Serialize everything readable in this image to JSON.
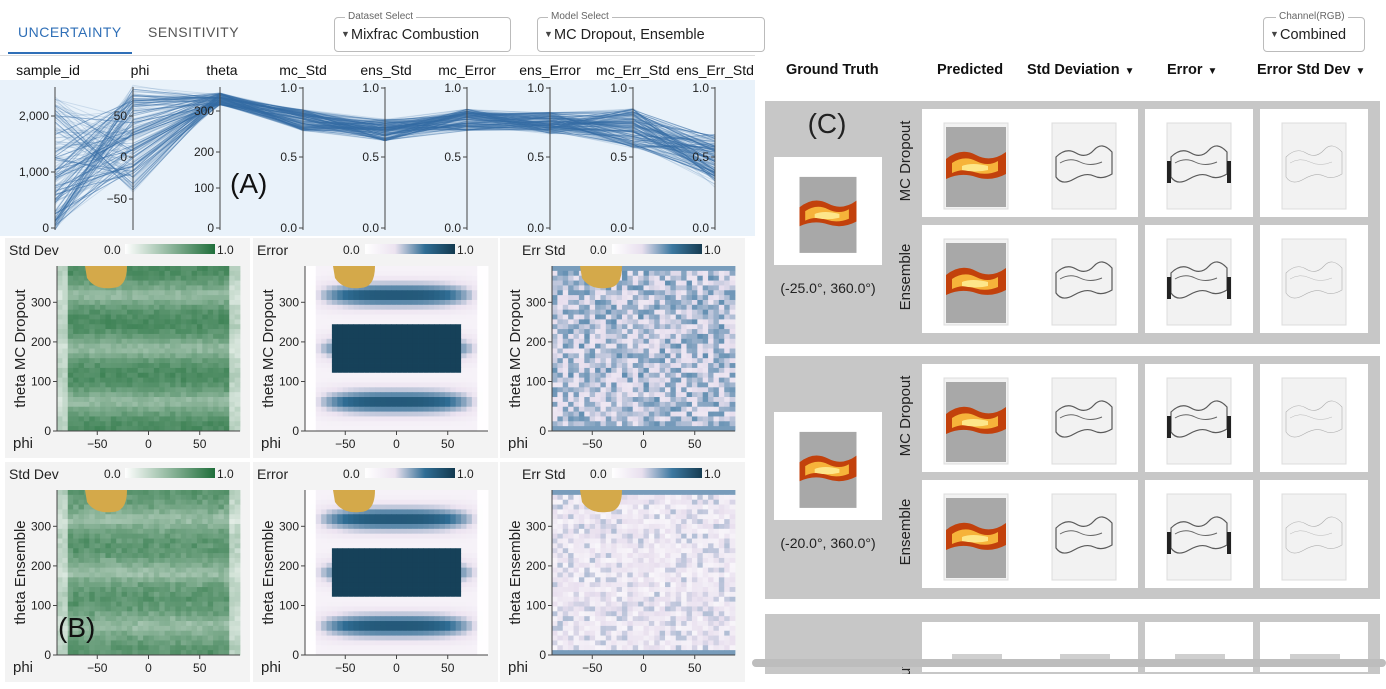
{
  "tabs": {
    "uncertainty": "UNCERTAINTY",
    "sensitivity": "SENSITIVITY"
  },
  "dataset_select": {
    "legend": "Dataset Select",
    "value": "Mixfrac Combustion"
  },
  "model_select": {
    "legend": "Model Select",
    "value": "MC Dropout, Ensemble"
  },
  "channel_select": {
    "legend": "Channel(RGB)",
    "value": "Combined"
  },
  "parallel_coords": {
    "axes": [
      "sample_id",
      "phi",
      "theta",
      "mc_Std",
      "ens_Std",
      "mc_Error",
      "ens_Error",
      "mc_Err_Std",
      "ens_Err_Std"
    ],
    "sample_id_ticks": [
      "2,000",
      "1,000",
      "0"
    ],
    "phi_ticks": [
      "50",
      "0",
      "−50"
    ],
    "theta_ticks": [
      "300",
      "200",
      "100",
      "0"
    ],
    "unit_ticks": [
      "1.0",
      "0.5",
      "0.0"
    ],
    "annotation": "(A)"
  },
  "heatmaps": {
    "x_ticks": [
      "−50",
      "0",
      "50"
    ],
    "y_ticks": [
      "300",
      "200",
      "100",
      "0"
    ],
    "x_label": "phi",
    "cb_lo": "0.0",
    "cb_hi": "1.0",
    "rows": [
      {
        "model": "MC Dropout",
        "panels": [
          {
            "title": "Std Dev",
            "ylabel": "theta MC Dropout"
          },
          {
            "title": "Error",
            "ylabel": "theta MC Dropout"
          },
          {
            "title": "Err Std",
            "ylabel": "theta MC Dropout"
          }
        ]
      },
      {
        "model": "Ensemble",
        "panels": [
          {
            "title": "Std Dev",
            "ylabel": "theta Ensemble"
          },
          {
            "title": "Error",
            "ylabel": "theta Ensemble"
          },
          {
            "title": "Err Std",
            "ylabel": "theta Ensemble"
          }
        ]
      }
    ],
    "annotation": "(B)"
  },
  "right": {
    "columns": [
      {
        "label": "Ground Truth",
        "dropdown": false
      },
      {
        "label": "Predicted",
        "dropdown": false
      },
      {
        "label": "Std Deviation",
        "dropdown": true
      },
      {
        "label": "Error",
        "dropdown": true
      },
      {
        "label": "Error Std Dev",
        "dropdown": true
      }
    ],
    "annotation": "(C)",
    "samples": [
      {
        "coords": "(-25.0°, 360.0°)",
        "models": [
          "MC Dropout",
          "Ensemble"
        ]
      },
      {
        "coords": "(-20.0°, 360.0°)",
        "models": [
          "MC Dropout",
          "Ensemble"
        ]
      },
      {
        "coords": "",
        "models": [
          "out"
        ]
      }
    ]
  },
  "colors": {
    "accent": "#2f6fb7",
    "green": "#1f6e3a",
    "blue": "#2f6d94",
    "mask": "#d4a94a"
  }
}
